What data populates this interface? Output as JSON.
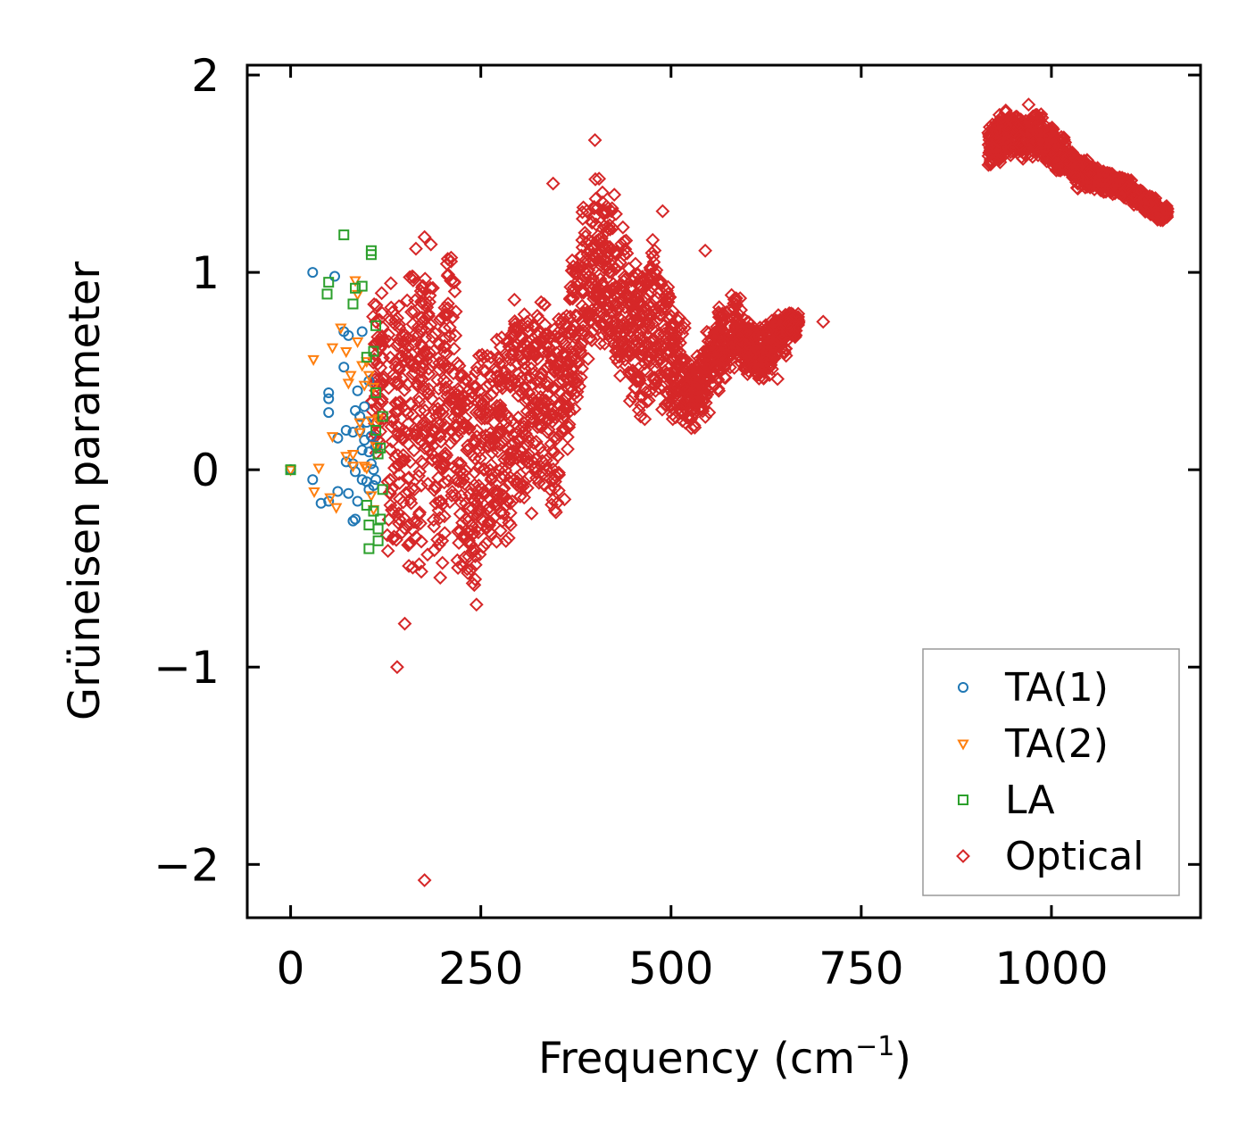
{
  "chart_data": {
    "type": "scatter",
    "xlabel": "Frequency (cm",
    "xlabel_sup": "−1",
    "xlabel_tail": ")",
    "ylabel": "Grüneisen parameter",
    "xlim": [
      -57,
      1196
    ],
    "ylim": [
      -2.27,
      2.05
    ],
    "xticks": [
      0,
      250,
      500,
      750,
      1000
    ],
    "xtick_labels": [
      "0",
      "250",
      "500",
      "750",
      "1000"
    ],
    "yticks": [
      2,
      1,
      0,
      -1,
      -2
    ],
    "ytick_labels": [
      "2",
      "1",
      "0",
      "−1",
      "−2"
    ],
    "legend_position": "lower-right",
    "series": [
      {
        "name": "TA(1)",
        "marker": "circle",
        "color": "#1f77b4",
        "points": [
          [
            0,
            0
          ],
          [
            29,
            1.0
          ],
          [
            58,
            0.98
          ],
          [
            29,
            -0.05
          ],
          [
            40,
            -0.17
          ],
          [
            50,
            -0.16
          ],
          [
            50,
            0.29
          ],
          [
            50,
            0.36
          ],
          [
            50,
            0.39
          ],
          [
            62,
            0.16
          ],
          [
            62,
            -0.11
          ],
          [
            70,
            0.7
          ],
          [
            70,
            0.52
          ],
          [
            73,
            0.2
          ],
          [
            73,
            0.04
          ],
          [
            76,
            0.68
          ],
          [
            76,
            -0.12
          ],
          [
            82,
            0.19
          ],
          [
            82,
            0.03
          ],
          [
            82,
            -0.26
          ],
          [
            85,
            -0.25
          ],
          [
            85,
            0.3
          ],
          [
            85,
            -0.01
          ],
          [
            88,
            -0.16
          ],
          [
            88,
            0.4
          ],
          [
            91,
            0.27
          ],
          [
            91,
            0.2
          ],
          [
            94,
            0.7
          ],
          [
            94,
            0.1
          ],
          [
            94,
            -0.05
          ],
          [
            97,
            0.32
          ],
          [
            97,
            0.15
          ],
          [
            100,
            0.24
          ],
          [
            100,
            -0.06
          ],
          [
            103,
            0.45
          ],
          [
            103,
            0.09
          ],
          [
            103,
            -0.1
          ],
          [
            106,
            0.17
          ],
          [
            106,
            0.03
          ],
          [
            109,
            0.0
          ],
          [
            109,
            -0.08
          ],
          [
            112,
            -0.05
          ],
          [
            112,
            0.12
          ]
        ]
      },
      {
        "name": "TA(2)",
        "marker": "triangle",
        "color": "#ff7f0e",
        "points": [
          [
            0,
            0
          ],
          [
            30,
            0.56
          ],
          [
            37,
            0.01
          ],
          [
            31,
            -0.11
          ],
          [
            52,
            -0.14
          ],
          [
            55,
            0.62
          ],
          [
            55,
            0.17
          ],
          [
            60,
            -0.19
          ],
          [
            66,
            0.72
          ],
          [
            73,
            0.07
          ],
          [
            73,
            0.6
          ],
          [
            76,
            0.44
          ],
          [
            79,
            0.48
          ],
          [
            82,
            0.02
          ],
          [
            82,
            0.08
          ],
          [
            85,
            0.96
          ],
          [
            88,
            0.89
          ],
          [
            88,
            0.65
          ],
          [
            91,
            0.24
          ],
          [
            91,
            0.19
          ],
          [
            94,
            0.53
          ],
          [
            97,
            0.43
          ],
          [
            97,
            0.02
          ],
          [
            100,
            0.55
          ],
          [
            100,
            0.01
          ],
          [
            103,
            0.48
          ],
          [
            106,
            0.25
          ],
          [
            106,
            -0.13
          ],
          [
            109,
            0.42
          ],
          [
            109,
            -0.2
          ],
          [
            112,
            0.12
          ],
          [
            115,
            0.26
          ]
        ]
      },
      {
        "name": "LA",
        "marker": "square",
        "color": "#2ca02c",
        "points": [
          [
            0,
            0
          ],
          [
            48,
            0.89
          ],
          [
            50,
            0.95
          ],
          [
            70,
            1.19
          ],
          [
            82,
            0.84
          ],
          [
            85,
            0.92
          ],
          [
            94,
            0.93
          ],
          [
            100,
            0.57
          ],
          [
            100,
            -0.18
          ],
          [
            103,
            -0.28
          ],
          [
            103,
            -0.4
          ],
          [
            106,
            1.11
          ],
          [
            106,
            1.09
          ],
          [
            109,
            0.6
          ],
          [
            109,
            -0.21
          ],
          [
            112,
            0.73
          ],
          [
            112,
            0.39
          ],
          [
            112,
            0.2
          ],
          [
            115,
            0.08
          ],
          [
            115,
            -0.3
          ],
          [
            115,
            -0.36
          ],
          [
            118,
            0.11
          ],
          [
            118,
            -0.25
          ],
          [
            121,
            0.27
          ],
          [
            121,
            -0.1
          ]
        ]
      },
      {
        "name": "Optical",
        "marker": "diamond",
        "color": "#d62728",
        "points": [
          [
            140,
            -1.0
          ],
          [
            176,
            -2.08
          ],
          [
            400,
            1.67
          ],
          [
            345,
            1.45
          ],
          [
            489,
            1.31
          ],
          [
            545,
            1.11
          ],
          [
            500,
            0.4
          ],
          [
            460,
            0.27
          ],
          [
            550,
            0.29
          ],
          [
            600,
            0.7
          ],
          [
            640,
            0.46
          ],
          [
            180,
            -0.43
          ],
          [
            195,
            -0.38
          ],
          [
            150,
            -0.78
          ],
          [
            160,
            0.98
          ],
          [
            230,
            -0.25
          ],
          [
            300,
            0.07
          ],
          [
            330,
            -0.01
          ],
          [
            360,
            -0.15
          ],
          [
            700,
            0.75
          ],
          [
            920,
            1.6
          ],
          [
            940,
            1.82
          ],
          [
            970,
            1.85
          ],
          [
            1000,
            1.6
          ],
          [
            1050,
            1.5
          ],
          [
            1100,
            1.43
          ],
          [
            1130,
            1.34
          ],
          [
            1140,
            1.3
          ]
        ],
        "bands": [
          [
            115,
            0.5,
            0.5
          ],
          [
            135,
            0.3,
            0.8
          ],
          [
            150,
            0.2,
            0.85
          ],
          [
            165,
            0.3,
            0.85
          ],
          [
            180,
            0.5,
            0.75
          ],
          [
            195,
            0.1,
            0.8
          ],
          [
            210,
            0.5,
            0.75
          ],
          [
            225,
            0.05,
            0.6
          ],
          [
            240,
            -0.05,
            0.7
          ],
          [
            255,
            0.1,
            0.55
          ],
          [
            270,
            0.15,
            0.6
          ],
          [
            285,
            0.15,
            0.6
          ],
          [
            300,
            0.35,
            0.55
          ],
          [
            315,
            0.3,
            0.55
          ],
          [
            330,
            0.35,
            0.55
          ],
          [
            345,
            0.25,
            0.55
          ],
          [
            360,
            0.45,
            0.4
          ],
          [
            375,
            0.7,
            0.45
          ],
          [
            390,
            0.95,
            0.45
          ],
          [
            405,
            1.05,
            0.45
          ],
          [
            420,
            1.0,
            0.45
          ],
          [
            435,
            0.85,
            0.4
          ],
          [
            450,
            0.75,
            0.45
          ],
          [
            465,
            0.65,
            0.45
          ],
          [
            480,
            0.75,
            0.45
          ],
          [
            495,
            0.65,
            0.4
          ],
          [
            510,
            0.5,
            0.3
          ],
          [
            525,
            0.4,
            0.2
          ],
          [
            540,
            0.45,
            0.2
          ],
          [
            555,
            0.55,
            0.2
          ],
          [
            570,
            0.65,
            0.2
          ],
          [
            585,
            0.7,
            0.2
          ],
          [
            600,
            0.62,
            0.15
          ],
          [
            615,
            0.6,
            0.15
          ],
          [
            630,
            0.62,
            0.15
          ],
          [
            645,
            0.68,
            0.12
          ],
          [
            660,
            0.74,
            0.08
          ],
          [
            925,
            1.65,
            0.12
          ],
          [
            935,
            1.7,
            0.12
          ],
          [
            950,
            1.7,
            0.12
          ],
          [
            965,
            1.68,
            0.12
          ],
          [
            980,
            1.7,
            0.12
          ],
          [
            995,
            1.65,
            0.1
          ],
          [
            1010,
            1.6,
            0.1
          ],
          [
            1025,
            1.55,
            0.08
          ],
          [
            1040,
            1.5,
            0.08
          ],
          [
            1055,
            1.48,
            0.06
          ],
          [
            1070,
            1.46,
            0.06
          ],
          [
            1085,
            1.45,
            0.06
          ],
          [
            1100,
            1.42,
            0.06
          ],
          [
            1115,
            1.38,
            0.05
          ],
          [
            1130,
            1.34,
            0.05
          ],
          [
            1145,
            1.3,
            0.04
          ]
        ]
      }
    ]
  }
}
